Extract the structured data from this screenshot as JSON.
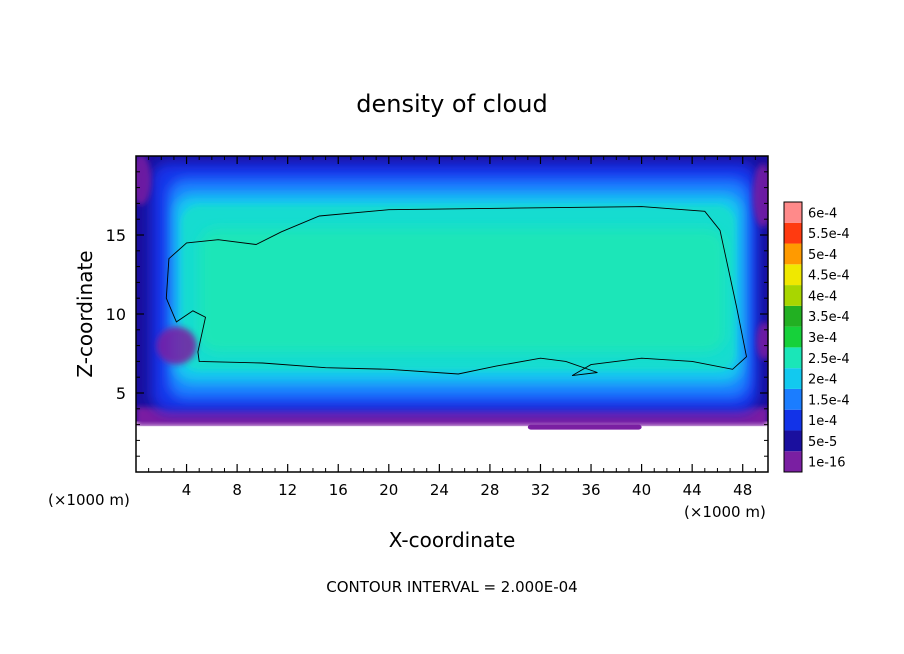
{
  "chart_data": {
    "type": "heatmap",
    "title": "density of cloud",
    "xlabel": "X-coordinate",
    "ylabel": "Z-coordinate",
    "x_unit_left": "(×1000 m)",
    "x_unit_right": "(×1000 m)",
    "xlim": [
      0,
      50
    ],
    "ylim": [
      0,
      20
    ],
    "xticks": [
      4,
      8,
      12,
      16,
      20,
      24,
      28,
      32,
      36,
      40,
      44,
      48
    ],
    "xtick_labels": [
      "4",
      "8",
      "12",
      "16",
      "20",
      "24",
      "28",
      "32",
      "36",
      "40",
      "44",
      "48"
    ],
    "yticks": [
      5,
      10,
      15
    ],
    "ytick_labels": [
      "5",
      "10",
      "15"
    ],
    "footer": "CONTOUR INTERVAL = 2.000E-04",
    "contour_level": 0.0002,
    "colorbar": {
      "levels": [
        1e-16,
        5e-05,
        0.0001,
        0.00015,
        0.0002,
        0.00025,
        0.0003,
        0.00035,
        0.0004,
        0.00045,
        0.0005,
        0.00055,
        0.0006
      ],
      "labels": [
        "1e-16",
        "5e-5",
        "1e-4",
        "1.5e-4",
        "2e-4",
        "2.5e-4",
        "3e-4",
        "3.5e-4",
        "4e-4",
        "4.5e-4",
        "5e-4",
        "5.5e-4",
        "6e-4"
      ],
      "colors": [
        "#7a1fa2",
        "#1a0f9e",
        "#1233e8",
        "#1b7dff",
        "#12c9ef",
        "#1ae6b8",
        "#16d13a",
        "#22b022",
        "#a8d600",
        "#f0e800",
        "#ff9a00",
        "#ff3a10",
        "#ff8a8a"
      ]
    },
    "field_description_levels": {
      "core_value": 0.00025,
      "edge_value": 0.0001,
      "base_value": 3e-05
    }
  }
}
